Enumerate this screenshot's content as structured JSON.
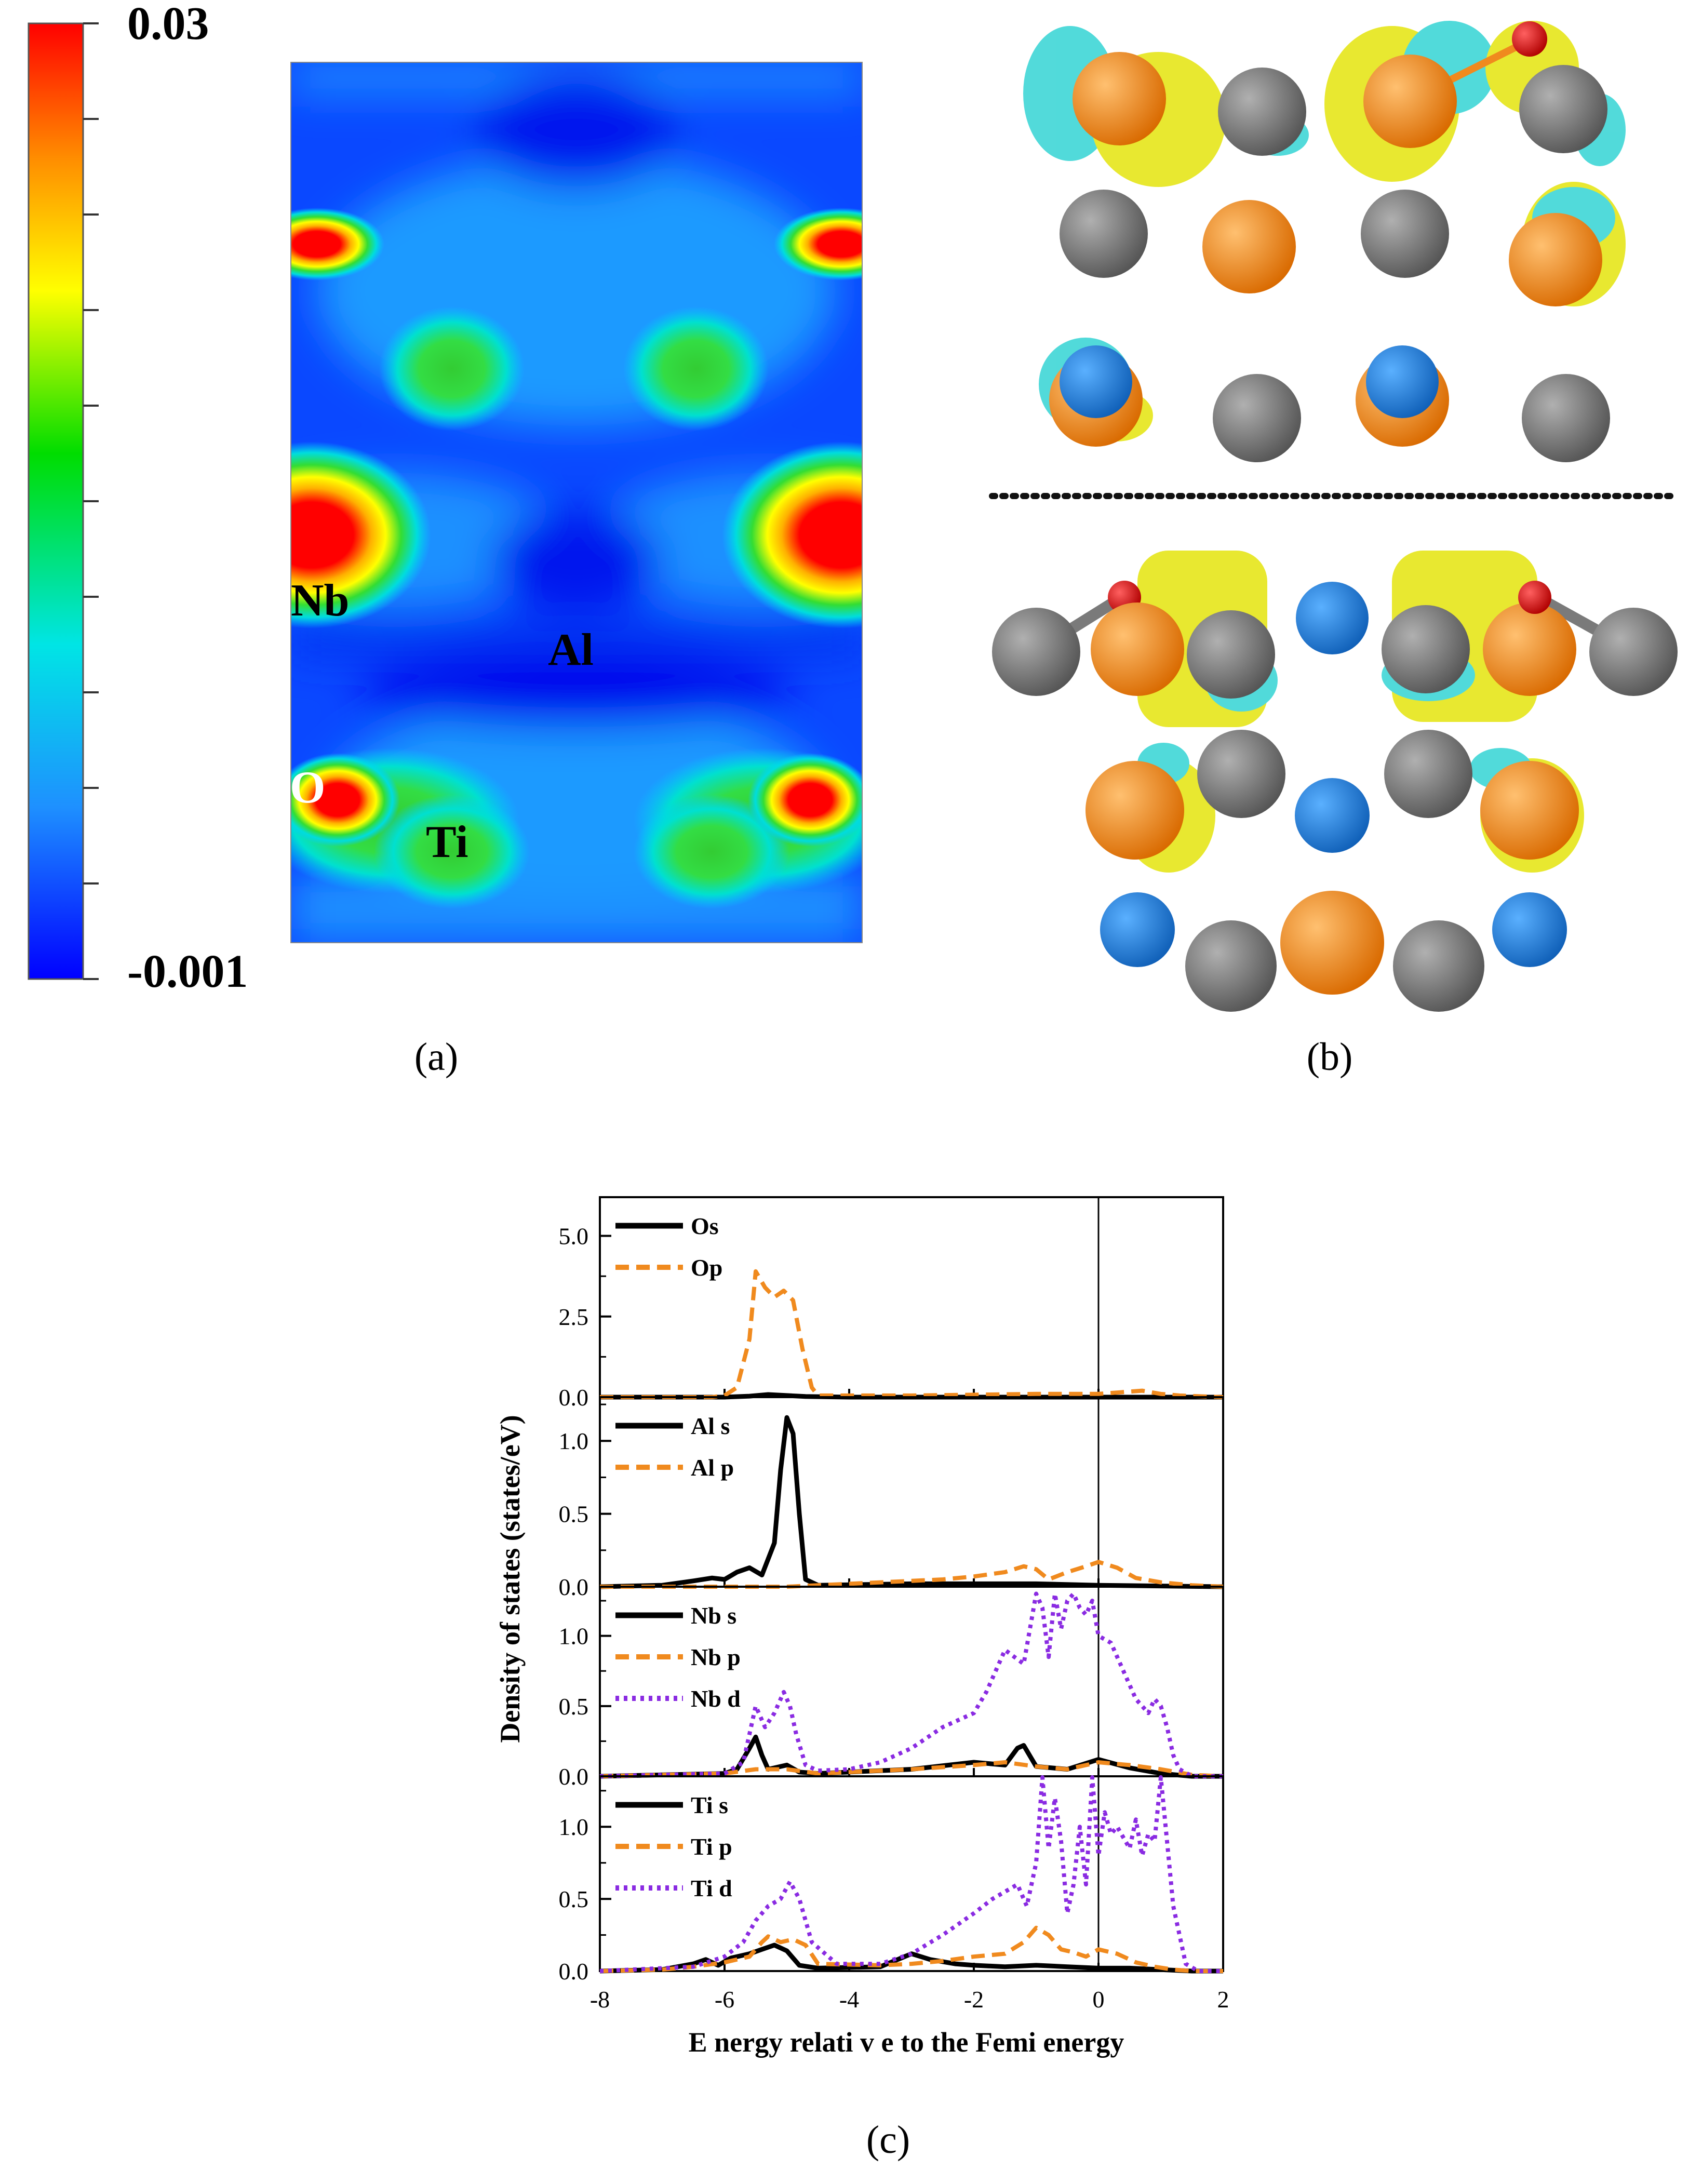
{
  "colorbar": {
    "max_label": "0.03",
    "min_label": "-0.001",
    "colors": [
      "#ff0000",
      "#ff8c00",
      "#ffff00",
      "#00dd00",
      "#00e5e5",
      "#1e90ff",
      "#0000ff"
    ]
  },
  "panel_a": {
    "caption": "(a)",
    "atom_labels": {
      "nb": "Nb",
      "al": "Al",
      "o": "O",
      "ti": "Ti"
    },
    "background_color": "#0040ff"
  },
  "panel_b": {
    "caption": "(b)",
    "atom_colors": {
      "nb": "#f08a1e",
      "ti": "#7a7a7a",
      "al": "#1f7fdc",
      "o": "#e00000"
    },
    "isosurface_colors": {
      "positive": "#e6e61a",
      "negative": "#3fd6d6"
    }
  },
  "panel_c": {
    "caption": "(c)"
  },
  "chart_data": {
    "type": "line",
    "xlabel": "E nergy relati v e to the Femi energy",
    "ylabel": "Density of states (states/eV)",
    "xlim": [
      -8,
      2
    ],
    "xticks": [
      -8,
      -6,
      -4,
      -2,
      0,
      2
    ],
    "fermi_level": 0,
    "subplots": [
      {
        "ylim": [
          0,
          6.2
        ],
        "yticks": [
          0.0,
          2.5,
          5.0
        ],
        "ytick_labels": [
          "0.0",
          "2.5",
          "5.0"
        ],
        "series": [
          {
            "name": "Os",
            "style": "solid",
            "color": "#000000",
            "x": [
              -8,
              -6,
              -5.6,
              -5.3,
              -5.0,
              -4.7,
              -4,
              -2,
              0,
              2
            ],
            "y": [
              0,
              0,
              0.03,
              0.08,
              0.05,
              0.02,
              0,
              0,
              0,
              0
            ]
          },
          {
            "name": "Op",
            "style": "dashed",
            "color": "#f08a1e",
            "x": [
              -8,
              -6.2,
              -6,
              -5.8,
              -5.6,
              -5.5,
              -5.35,
              -5.2,
              -5.05,
              -4.9,
              -4.75,
              -4.6,
              -4.5,
              -3,
              -1,
              0,
              0.7,
              1,
              1.3,
              2
            ],
            "y": [
              0,
              0,
              0.05,
              0.3,
              1.8,
              3.9,
              3.4,
              3.1,
              3.3,
              3.0,
              1.5,
              0.3,
              0.05,
              0.05,
              0.1,
              0.1,
              0.2,
              0.1,
              0.05,
              0
            ]
          }
        ]
      },
      {
        "ylim": [
          0,
          1.3
        ],
        "yticks": [
          0.0,
          0.5,
          1.0
        ],
        "ytick_labels": [
          "0.0",
          "0.5",
          "1.0"
        ],
        "series": [
          {
            "name": "Al s",
            "style": "solid",
            "color": "#000000",
            "x": [
              -8,
              -7,
              -6.5,
              -6.2,
              -6,
              -5.8,
              -5.6,
              -5.4,
              -5.2,
              -5.1,
              -5.0,
              -4.9,
              -4.8,
              -4.7,
              -4.5,
              -3,
              -1,
              0,
              2
            ],
            "y": [
              0,
              0.01,
              0.04,
              0.06,
              0.05,
              0.1,
              0.13,
              0.08,
              0.3,
              0.8,
              1.16,
              1.05,
              0.5,
              0.05,
              0.01,
              0.02,
              0.02,
              0.01,
              0
            ]
          },
          {
            "name": "Al p",
            "style": "dashed",
            "color": "#f08a1e",
            "x": [
              -8,
              -6,
              -5,
              -4.5,
              -4,
              -3,
              -2.5,
              -2,
              -1.5,
              -1.2,
              -1.0,
              -0.8,
              -0.5,
              -0.2,
              0,
              0.3,
              0.6,
              1,
              1.5,
              2
            ],
            "y": [
              0,
              0,
              0,
              0.01,
              0.02,
              0.04,
              0.05,
              0.07,
              0.1,
              0.14,
              0.12,
              0.05,
              0.1,
              0.14,
              0.17,
              0.13,
              0.06,
              0.03,
              0.01,
              0
            ]
          }
        ]
      },
      {
        "ylim": [
          0,
          1.35
        ],
        "yticks": [
          0.0,
          0.5,
          1.0
        ],
        "ytick_labels": [
          "0.0",
          "0.5",
          "1.0"
        ],
        "series": [
          {
            "name": "Nb s",
            "style": "solid",
            "color": "#000000",
            "x": [
              -8,
              -7,
              -6,
              -5.8,
              -5.6,
              -5.5,
              -5.4,
              -5.3,
              -5.0,
              -4.8,
              -4.5,
              -3,
              -2,
              -1.5,
              -1.3,
              -1.2,
              -1,
              -0.5,
              0,
              0.5,
              1,
              1.5,
              2
            ],
            "y": [
              0,
              0.01,
              0.02,
              0.05,
              0.2,
              0.28,
              0.15,
              0.05,
              0.08,
              0.03,
              0.02,
              0.05,
              0.1,
              0.08,
              0.2,
              0.22,
              0.07,
              0.05,
              0.12,
              0.06,
              0.02,
              0,
              0
            ]
          },
          {
            "name": "Nb p",
            "style": "dashed",
            "color": "#f08a1e",
            "x": [
              -8,
              -6,
              -5.5,
              -5.0,
              -4.5,
              -3,
              -2,
              -1.5,
              -1,
              -0.5,
              0,
              0.5,
              1,
              1.5,
              2
            ],
            "y": [
              0,
              0.02,
              0.05,
              0.05,
              0.02,
              0.05,
              0.08,
              0.1,
              0.07,
              0.05,
              0.1,
              0.08,
              0.05,
              0.01,
              0
            ]
          },
          {
            "name": "Nb d",
            "style": "dotted",
            "color": "#8a2be2",
            "x": [
              -8,
              -6,
              -5.7,
              -5.5,
              -5.35,
              -5.2,
              -5.05,
              -4.95,
              -4.85,
              -4.7,
              -4.5,
              -4,
              -3.5,
              -3,
              -2.5,
              -2,
              -1.8,
              -1.5,
              -1.2,
              -1.0,
              -0.9,
              -0.8,
              -0.7,
              -0.6,
              -0.5,
              -0.4,
              -0.3,
              -0.2,
              -0.1,
              0,
              0.2,
              0.4,
              0.6,
              0.8,
              0.9,
              1.0,
              1.1,
              1.2,
              1.3,
              1.5,
              2
            ],
            "y": [
              0,
              0.02,
              0.1,
              0.5,
              0.35,
              0.45,
              0.6,
              0.5,
              0.3,
              0.08,
              0.04,
              0.05,
              0.1,
              0.2,
              0.35,
              0.45,
              0.6,
              0.9,
              0.8,
              1.3,
              1.2,
              0.85,
              1.3,
              1.05,
              1.25,
              1.3,
              1.2,
              1.15,
              1.25,
              1.0,
              0.95,
              0.75,
              0.55,
              0.45,
              0.55,
              0.5,
              0.35,
              0.15,
              0.05,
              0,
              0
            ]
          }
        ]
      },
      {
        "ylim": [
          0,
          1.35
        ],
        "yticks": [
          0.0,
          0.5,
          1.0
        ],
        "ytick_labels": [
          "0.0",
          "0.5",
          "1.0"
        ],
        "series": [
          {
            "name": "Ti s",
            "style": "solid",
            "color": "#000000",
            "x": [
              -8,
              -7,
              -6.5,
              -6.3,
              -6.1,
              -5.9,
              -5.6,
              -5.4,
              -5.2,
              -5.0,
              -4.8,
              -4.5,
              -3.5,
              -3.0,
              -2.7,
              -2.3,
              -2,
              -1.5,
              -1,
              -0.5,
              0,
              0.5,
              1,
              1.5,
              2
            ],
            "y": [
              0,
              0.01,
              0.05,
              0.08,
              0.04,
              0.09,
              0.12,
              0.15,
              0.18,
              0.14,
              0.04,
              0.02,
              0.03,
              0.12,
              0.08,
              0.05,
              0.04,
              0.03,
              0.04,
              0.03,
              0.02,
              0.02,
              0.01,
              0,
              0
            ]
          },
          {
            "name": "Ti p",
            "style": "dashed",
            "color": "#f08a1e",
            "x": [
              -8,
              -7,
              -6.5,
              -6,
              -5.6,
              -5.4,
              -5.3,
              -5.1,
              -4.9,
              -4.7,
              -4.5,
              -3.5,
              -3,
              -2.5,
              -2,
              -1.5,
              -1.2,
              -1.0,
              -0.8,
              -0.6,
              -0.4,
              -0.2,
              0,
              0.3,
              0.6,
              0.9,
              1.2,
              1.5,
              2
            ],
            "y": [
              0,
              0.01,
              0.03,
              0.06,
              0.1,
              0.2,
              0.24,
              0.2,
              0.22,
              0.18,
              0.05,
              0.04,
              0.05,
              0.07,
              0.1,
              0.12,
              0.2,
              0.3,
              0.25,
              0.15,
              0.13,
              0.1,
              0.15,
              0.12,
              0.06,
              0.03,
              0.01,
              0,
              0
            ]
          },
          {
            "name": "Ti d",
            "style": "dotted",
            "color": "#8a2be2",
            "x": [
              -8,
              -6.5,
              -6,
              -5.7,
              -5.5,
              -5.3,
              -5.1,
              -4.95,
              -4.8,
              -4.6,
              -4.2,
              -3.5,
              -3,
              -2.5,
              -2,
              -1.7,
              -1.5,
              -1.3,
              -1.15,
              -1.0,
              -0.9,
              -0.8,
              -0.7,
              -0.6,
              -0.5,
              -0.4,
              -0.3,
              -0.2,
              -0.1,
              0,
              0.1,
              0.2,
              0.3,
              0.5,
              0.6,
              0.7,
              0.8,
              0.9,
              1.0,
              1.1,
              1.2,
              1.3,
              1.4,
              1.6,
              2
            ],
            "y": [
              0,
              0.03,
              0.1,
              0.2,
              0.35,
              0.45,
              0.5,
              0.62,
              0.5,
              0.2,
              0.05,
              0.05,
              0.12,
              0.25,
              0.4,
              0.5,
              0.55,
              0.6,
              0.45,
              0.75,
              1.35,
              0.85,
              1.2,
              0.9,
              0.4,
              0.6,
              1.0,
              0.6,
              1.35,
              0.8,
              1.1,
              0.95,
              1.0,
              0.85,
              1.05,
              0.8,
              0.95,
              0.9,
              1.35,
              0.9,
              0.45,
              0.25,
              0.05,
              0,
              0
            ]
          }
        ]
      }
    ]
  }
}
